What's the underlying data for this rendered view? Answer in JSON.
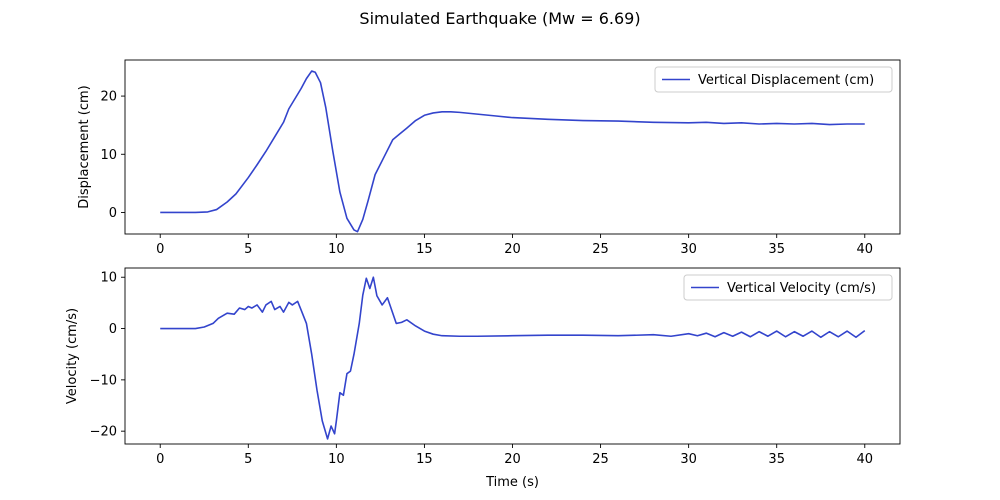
{
  "figure_title": "Simulated Earthquake (Mw = 6.69)",
  "line_color": "#3344cc",
  "chart_data": [
    {
      "type": "line",
      "title": "",
      "xlabel": "",
      "ylabel": "Displacement (cm)",
      "xlim": [
        -2,
        42
      ],
      "ylim": [
        -3.7,
        26.2
      ],
      "xticks": [
        0,
        5,
        10,
        15,
        20,
        25,
        30,
        35,
        40
      ],
      "yticks": [
        0,
        10,
        20
      ],
      "legend": "top-right",
      "grid": false,
      "series": [
        {
          "name": "Vertical Displacement (cm)",
          "x": [
            0,
            1,
            2,
            2.7,
            3.2,
            3.8,
            4.3,
            5,
            5.5,
            6,
            6.5,
            7,
            7.3,
            7.7,
            8,
            8.3,
            8.6,
            8.8,
            9.1,
            9.4,
            9.8,
            10.2,
            10.6,
            11,
            11.2,
            11.5,
            11.8,
            12.2,
            12.7,
            13.2,
            13.6,
            14,
            14.5,
            15,
            15.5,
            16,
            16.5,
            17,
            18,
            19,
            20,
            22,
            24,
            26,
            28,
            30,
            31,
            32,
            33,
            34,
            35,
            36,
            37,
            38,
            39,
            40
          ],
          "y": [
            0,
            0,
            0,
            0.1,
            0.5,
            1.8,
            3.2,
            6,
            8.2,
            10.5,
            13,
            15.5,
            17.8,
            19.8,
            21.3,
            23,
            24.3,
            24.1,
            22.3,
            18,
            10.5,
            3.5,
            -1,
            -3,
            -3.3,
            -1.2,
            2,
            6.5,
            9.5,
            12.5,
            13.5,
            14.5,
            15.8,
            16.7,
            17.1,
            17.3,
            17.3,
            17.2,
            16.9,
            16.6,
            16.3,
            16,
            15.8,
            15.7,
            15.5,
            15.4,
            15.5,
            15.3,
            15.4,
            15.2,
            15.3,
            15.2,
            15.3,
            15.1,
            15.2,
            15.2
          ]
        }
      ]
    },
    {
      "type": "line",
      "title": "",
      "xlabel": "Time (s)",
      "ylabel": "Velocity (cm/s)",
      "xlim": [
        -2,
        42
      ],
      "ylim": [
        -22.5,
        11.8
      ],
      "xticks": [
        0,
        5,
        10,
        15,
        20,
        25,
        30,
        35,
        40
      ],
      "yticks": [
        -20,
        -10,
        0,
        10
      ],
      "legend": "top-right",
      "grid": false,
      "series": [
        {
          "name": "Vertical Velocity (cm/s)",
          "x": [
            0,
            1,
            2,
            2.5,
            3,
            3.3,
            3.8,
            4.2,
            4.5,
            4.8,
            5,
            5.2,
            5.5,
            5.8,
            6,
            6.3,
            6.5,
            6.8,
            7,
            7.3,
            7.5,
            7.8,
            8,
            8.3,
            8.6,
            8.9,
            9.2,
            9.5,
            9.7,
            9.9,
            10,
            10.2,
            10.4,
            10.6,
            10.8,
            11,
            11.3,
            11.5,
            11.7,
            11.9,
            12.1,
            12.3,
            12.6,
            12.9,
            13.1,
            13.4,
            13.7,
            14,
            14.5,
            15,
            15.5,
            16,
            17,
            18,
            20,
            22,
            24,
            26,
            28,
            29,
            30,
            30.5,
            31,
            31.5,
            32,
            32.5,
            33,
            33.5,
            34,
            34.5,
            35,
            35.5,
            36,
            36.5,
            37,
            37.5,
            38,
            38.5,
            39,
            39.5,
            40
          ],
          "y": [
            0,
            0,
            0,
            0.3,
            1,
            2,
            3,
            2.8,
            4,
            3.7,
            4.3,
            4,
            4.6,
            3.2,
            4.6,
            5.3,
            3.7,
            4.3,
            3.2,
            5.1,
            4.6,
            5.3,
            3.6,
            1,
            -5,
            -12,
            -18,
            -21.5,
            -19,
            -20.5,
            -18,
            -12.5,
            -13,
            -8.8,
            -8.3,
            -5,
            1,
            6.5,
            9.8,
            7.8,
            10,
            6.4,
            4.6,
            6,
            4,
            1,
            1.2,
            1.7,
            0.5,
            -0.5,
            -1.1,
            -1.4,
            -1.5,
            -1.5,
            -1.4,
            -1.3,
            -1.3,
            -1.4,
            -1.2,
            -1.5,
            -1,
            -1.4,
            -0.9,
            -1.6,
            -0.8,
            -1.5,
            -0.7,
            -1.6,
            -0.6,
            -1.5,
            -0.5,
            -1.6,
            -0.6,
            -1.5,
            -0.5,
            -1.7,
            -0.6,
            -1.6,
            -0.5,
            -1.7,
            -0.4
          ]
        }
      ]
    }
  ]
}
